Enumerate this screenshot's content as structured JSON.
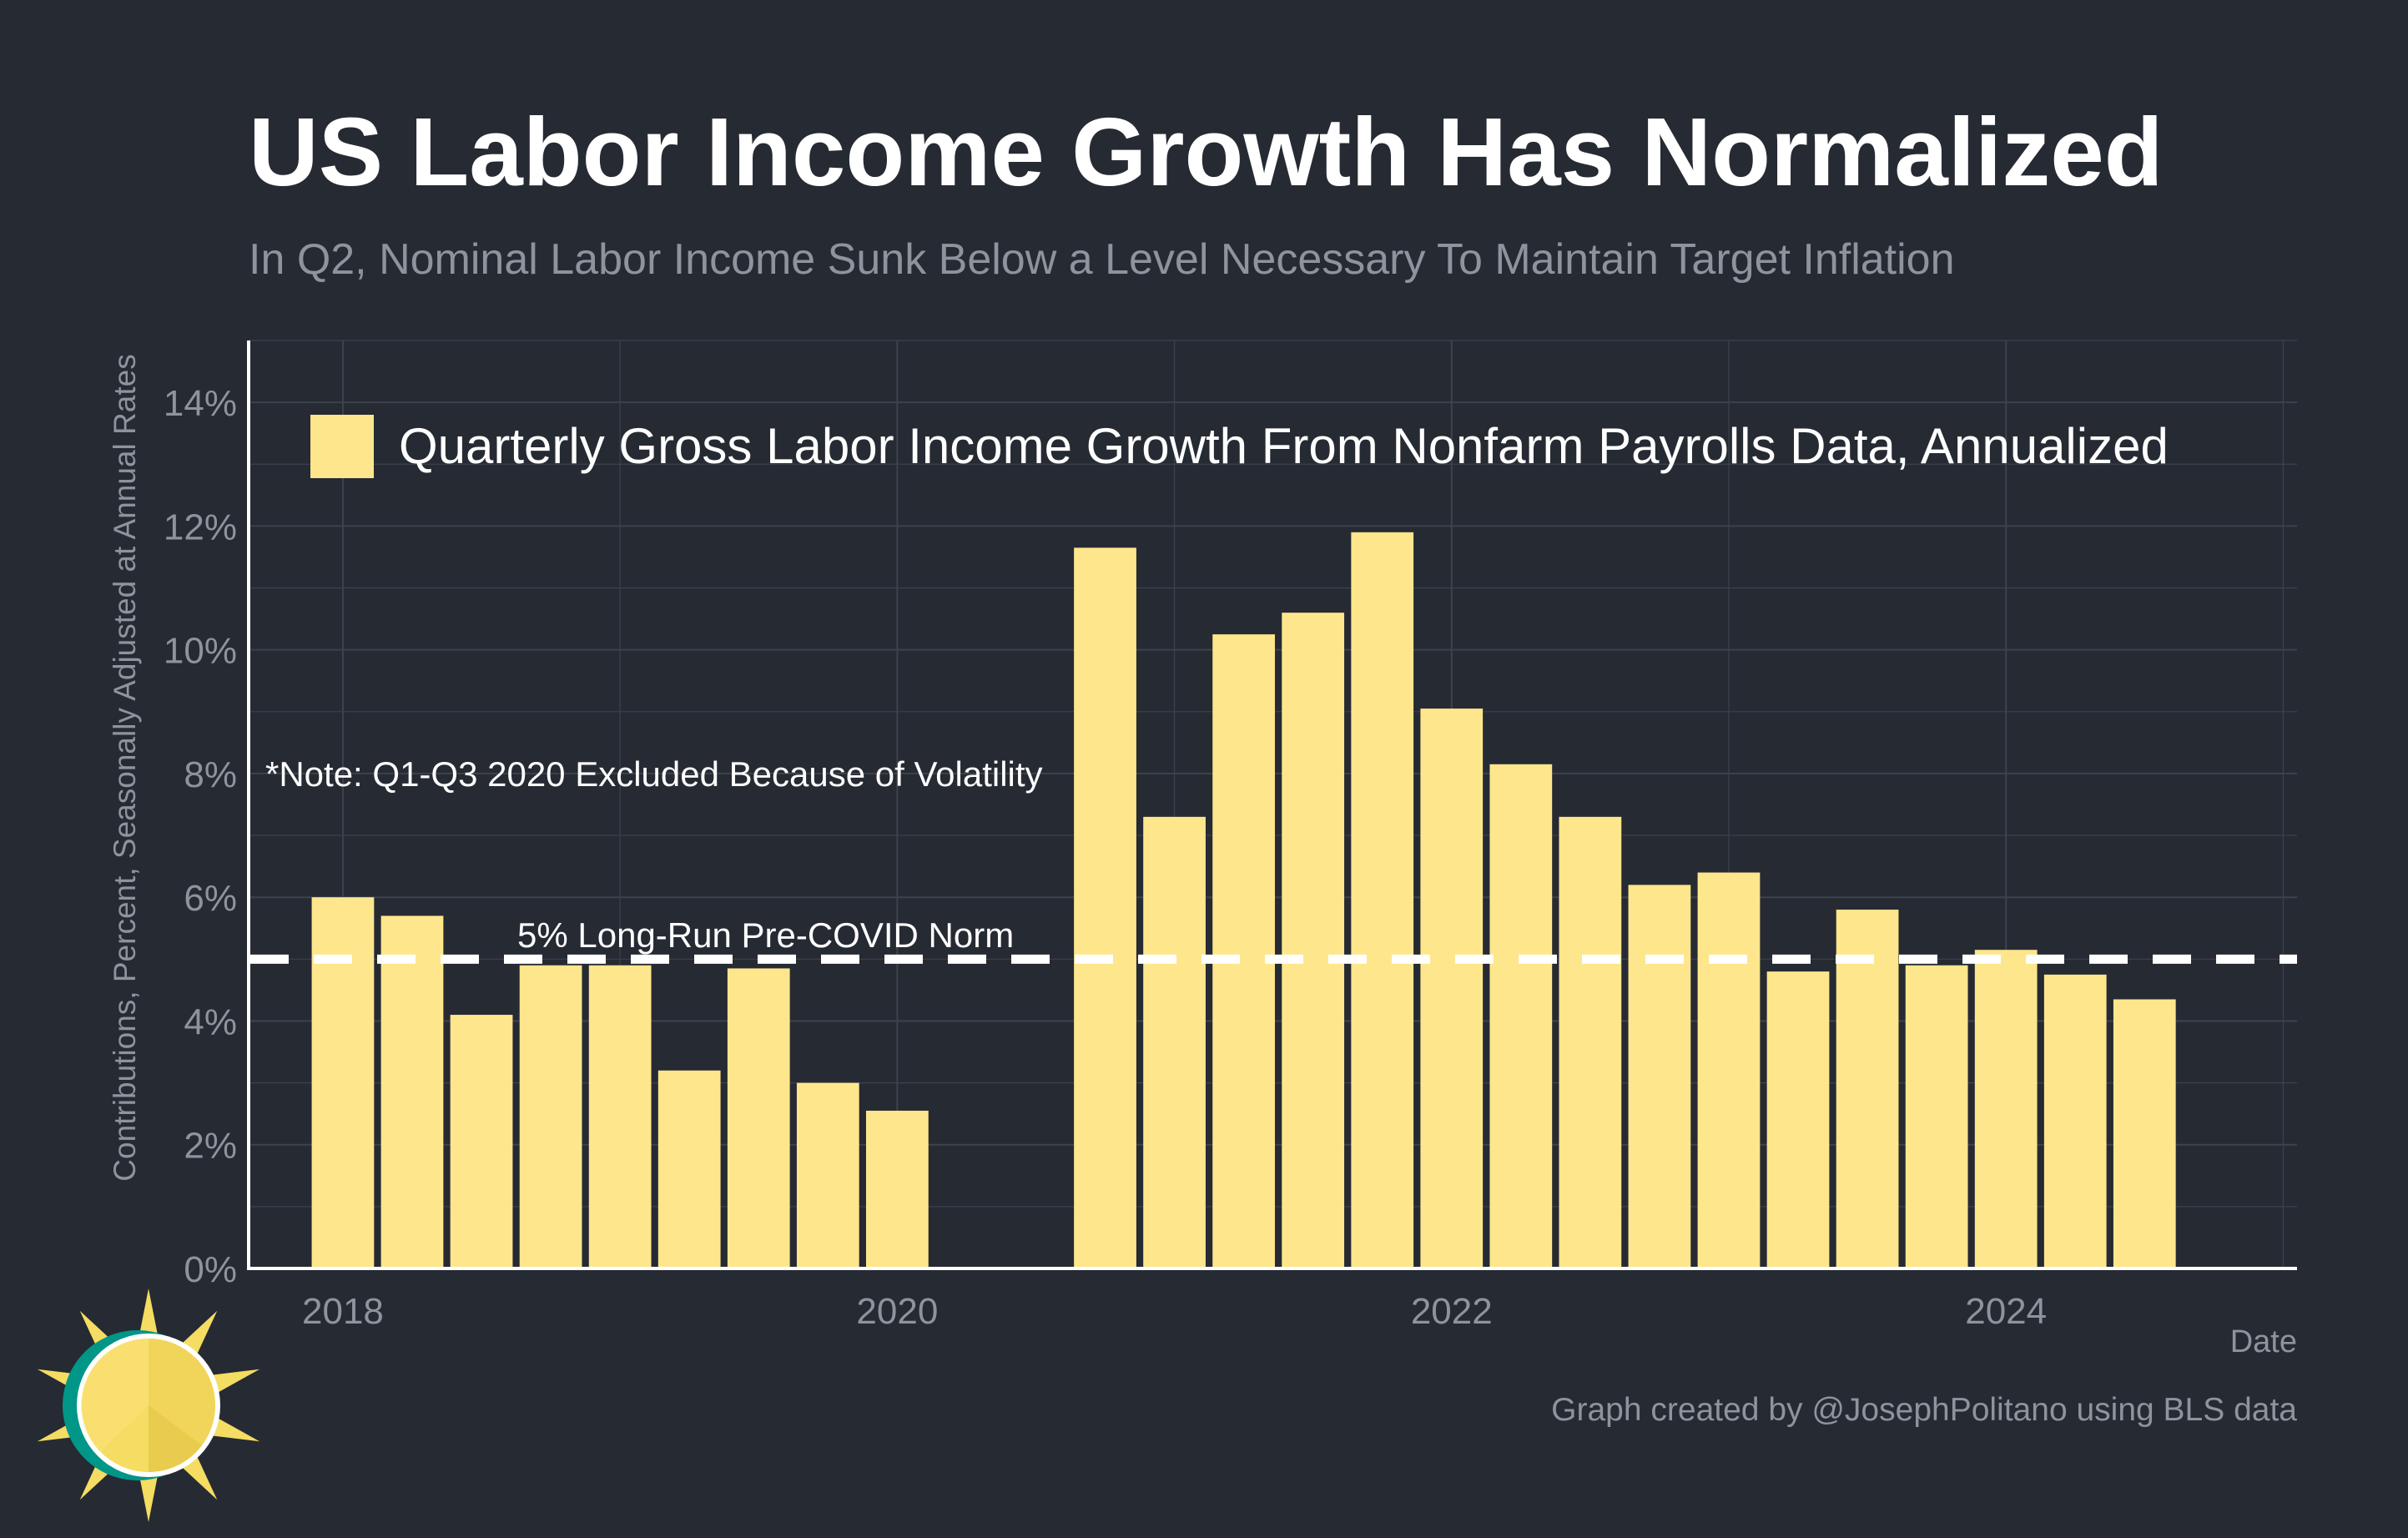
{
  "title": "US Labor Income Growth Has Normalized",
  "subtitle": "In Q2, Nominal Labor Income Sunk Below a Level Necessary To Maintain Target Inflation",
  "caption": "Graph created by @JosephPolitano using BLS data",
  "logo_icon": "sun-logo-icon",
  "colors": {
    "background": "#262a33",
    "bar": "#fee68c",
    "text": "#ffffff",
    "muted": "#8e939c",
    "grid": "#3d424c",
    "reference_line": "#ffffff",
    "logo_teal": "#009688",
    "logo_yellow": "#f5dc62"
  },
  "chart_data": {
    "type": "bar",
    "xlabel": "Date",
    "ylabel": "Contributions, Percent, Seasonally Adjusted at Annual Rates",
    "ylim": [
      0,
      15
    ],
    "xlim": [
      2017.66,
      2025.05
    ],
    "x_ticks": [
      {
        "label": "2018",
        "value": 2018
      },
      {
        "label": "2020",
        "value": 2020
      },
      {
        "label": "2022",
        "value": 2022
      },
      {
        "label": "2024",
        "value": 2024
      }
    ],
    "y_ticks": [
      {
        "label": "0%",
        "value": 0
      },
      {
        "label": "2%",
        "value": 2
      },
      {
        "label": "4%",
        "value": 4
      },
      {
        "label": "6%",
        "value": 6
      },
      {
        "label": "8%",
        "value": 8
      },
      {
        "label": "10%",
        "value": 10
      },
      {
        "label": "12%",
        "value": 12
      },
      {
        "label": "14%",
        "value": 14
      }
    ],
    "grid": true,
    "legend_position": "top-left",
    "series": [
      {
        "name": "Quarterly Gross Labor Income Growth From Nonfarm Payrolls Data, Annualized",
        "x": [
          2018.0,
          2018.25,
          2018.5,
          2018.75,
          2019.0,
          2019.25,
          2019.5,
          2019.75,
          2020.0,
          2020.75,
          2021.0,
          2021.25,
          2021.5,
          2021.75,
          2022.0,
          2022.25,
          2022.5,
          2022.75,
          2023.0,
          2023.25,
          2023.5,
          2023.75,
          2024.0,
          2024.25,
          2024.5
        ],
        "values": [
          6.0,
          5.7,
          4.1,
          4.9,
          4.9,
          3.2,
          4.85,
          3.0,
          2.55,
          11.65,
          7.3,
          10.25,
          10.6,
          11.9,
          9.05,
          8.15,
          7.3,
          6.2,
          6.4,
          4.8,
          5.8,
          4.9,
          5.15,
          4.75,
          4.35
        ]
      }
    ],
    "reference_line": {
      "value": 5,
      "label": "5% Long-Run Pre-COVID Norm",
      "style": "dashed"
    },
    "annotations": [
      "*Note: Q1-Q3 2020 Excluded Because of Volatility"
    ]
  }
}
